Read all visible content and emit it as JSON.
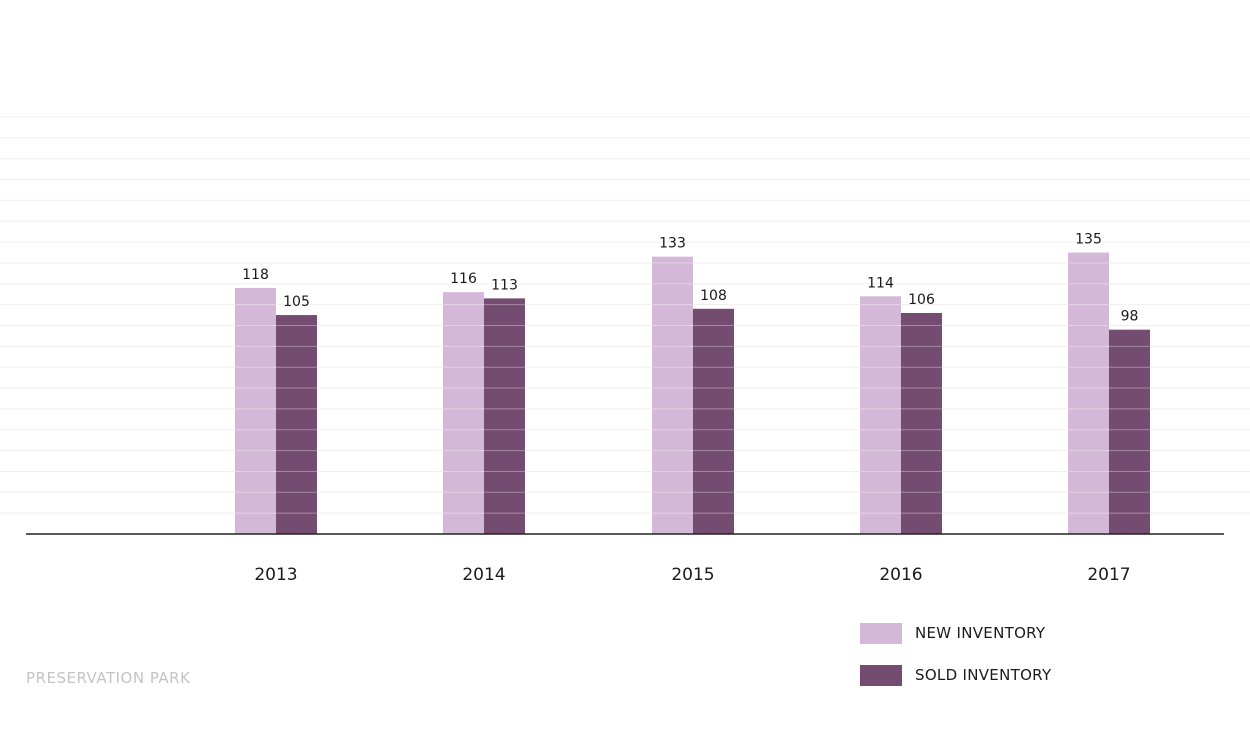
{
  "chart_data": {
    "type": "bar",
    "categories": [
      "2013",
      "2014",
      "2015",
      "2016",
      "2017"
    ],
    "series": [
      {
        "name": "NEW INVENTORY",
        "values": [
          118,
          116,
          133,
          114,
          135
        ],
        "color": "#d4b8d8"
      },
      {
        "name": "SOLD INVENTORY",
        "values": [
          105,
          113,
          108,
          106,
          98
        ],
        "color": "#744b71"
      }
    ],
    "ylim": [
      0,
      200
    ],
    "grid": true,
    "legend": "bottom-right"
  },
  "footer": {
    "text": "PRESERVATION PARK"
  }
}
